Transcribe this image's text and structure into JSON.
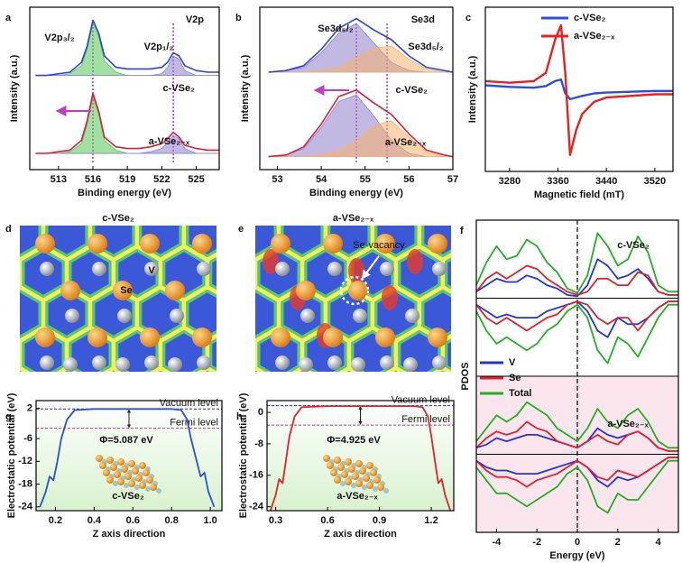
{
  "chart_data": [
    {
      "type": "line",
      "panel": "a",
      "title": "V2p",
      "xlabel": "Binding energy (eV)",
      "ylabel": "Intensity (a.u.)",
      "xlim": [
        510.5,
        527
      ],
      "xticks": [
        513,
        516,
        519,
        522,
        525
      ],
      "ylim": [
        0,
        100
      ],
      "annotations": [
        "V2p₃/₂",
        "V2p₁/₂"
      ],
      "peak_lines": [
        516,
        523
      ],
      "x": [
        511,
        512,
        513,
        514,
        515,
        515.5,
        516,
        516.5,
        517,
        518,
        519,
        520,
        521,
        522,
        522.5,
        523,
        523.5,
        524,
        525,
        526,
        527
      ],
      "series": [
        {
          "color": "#55c655",
          "fill": true,
          "values": [
            58,
            58,
            58,
            59,
            64,
            74,
            90,
            82,
            67,
            60,
            58,
            58,
            58,
            58,
            58,
            58,
            58,
            58,
            58,
            58,
            58
          ]
        },
        {
          "color": "#8f80cc",
          "fill": true,
          "values": [
            58,
            58,
            58,
            58,
            58,
            58,
            58,
            58,
            58,
            58,
            58,
            58,
            58,
            59,
            63,
            70,
            68,
            61,
            58,
            58,
            58
          ]
        },
        {
          "color": "#55c655",
          "fill": true,
          "values": [
            10,
            10,
            10,
            11,
            16,
            28,
            45,
            34,
            18,
            12,
            10,
            10,
            10,
            10,
            10,
            10,
            10,
            10,
            10,
            10,
            10
          ]
        },
        {
          "color": "#8f80cc",
          "fill": true,
          "values": [
            10,
            10,
            10,
            10,
            10,
            10,
            10,
            10,
            10,
            10,
            10,
            10,
            11,
            13,
            17,
            21,
            19,
            13,
            10,
            10,
            10
          ]
        },
        {
          "name": "c-VSe₂",
          "color": "#2a44d6",
          "values": [
            58,
            58,
            59,
            60,
            66,
            76,
            92,
            84,
            70,
            63,
            62,
            62,
            62,
            63,
            66,
            72,
            70,
            64,
            61,
            60,
            60
          ]
        },
        {
          "name": "a-VSe₂₋ₓ",
          "color": "#d81f3a",
          "values": [
            10,
            10,
            11,
            12,
            18,
            30,
            47,
            36,
            20,
            14,
            13,
            13,
            14,
            16,
            19,
            23,
            20,
            15,
            13,
            12,
            12
          ]
        }
      ]
    },
    {
      "type": "line",
      "panel": "b",
      "title": "Se3d",
      "xlabel": "Binding energy (eV)",
      "ylabel": "Intensity (a.u.)",
      "xlim": [
        52.6,
        57
      ],
      "xticks": [
        53,
        54,
        55,
        56,
        57
      ],
      "ylim": [
        0,
        100
      ],
      "annotations": [
        "Se3d₅/₂",
        "Se3d₅/₂"
      ],
      "peak_lines": [
        54.8,
        55.5
      ],
      "x": [
        52.8,
        53.2,
        53.6,
        54,
        54.4,
        54.8,
        55.2,
        55.6,
        56,
        56.4,
        56.8,
        57
      ],
      "series": [
        {
          "color": "#8f80cc",
          "fill": true,
          "values": [
            60,
            61,
            63,
            72,
            84,
            90,
            78,
            66,
            61,
            60,
            60,
            60
          ]
        },
        {
          "color": "#f7b36b",
          "fill": true,
          "values": [
            60,
            60,
            60,
            61,
            63,
            69,
            75,
            76,
            68,
            62,
            60,
            60
          ]
        },
        {
          "color": "#8f80cc",
          "fill": true,
          "values": [
            8,
            9,
            13,
            26,
            42,
            46,
            33,
            18,
            10,
            8,
            8,
            8
          ]
        },
        {
          "color": "#f7b36b",
          "fill": true,
          "values": [
            8,
            8,
            8,
            9,
            12,
            18,
            27,
            30,
            20,
            11,
            8,
            8
          ]
        },
        {
          "name": "c-VSe₂",
          "color": "#2a44d6",
          "values": [
            60,
            61,
            64,
            74,
            87,
            93,
            86,
            80,
            70,
            63,
            61,
            60
          ]
        },
        {
          "name": "a-VSe₂₋ₓ",
          "color": "#d81f3a",
          "values": [
            8,
            9,
            14,
            28,
            45,
            49,
            41,
            34,
            22,
            12,
            9,
            8
          ]
        }
      ]
    },
    {
      "type": "line",
      "panel": "c",
      "xlabel": "Magnetic field (mT)",
      "ylabel": "Intensity (a.u.)",
      "xlim": [
        3240,
        3550
      ],
      "xticks": [
        3280,
        3360,
        3440,
        3520
      ],
      "ylim": [
        -1,
        1
      ],
      "legend": "upper right",
      "x": [
        3240,
        3280,
        3320,
        3340,
        3355,
        3365,
        3372,
        3380,
        3390,
        3400,
        3420,
        3440,
        3480,
        3520,
        3550
      ],
      "series": [
        {
          "name": "c-VSe₂",
          "color": "#2a4fe0",
          "values": [
            0.05,
            0.03,
            0.02,
            0.04,
            0.1,
            0.12,
            -0.05,
            -0.12,
            -0.1,
            -0.08,
            -0.05,
            -0.04,
            -0.03,
            -0.02,
            -0.02
          ]
        },
        {
          "name": "a-VSe₂₋ₓ",
          "color": "#e8201e",
          "values": [
            0.1,
            0.08,
            0.1,
            0.2,
            0.6,
            0.78,
            0.2,
            -0.8,
            -0.5,
            -0.3,
            -0.15,
            -0.1,
            -0.08,
            -0.06,
            -0.06
          ]
        }
      ]
    },
    {
      "type": "map",
      "panel": "d",
      "label": "c-VSe₂",
      "atom_labels": [
        "V",
        "Se"
      ]
    },
    {
      "type": "map",
      "panel": "e",
      "label": "a-VSe₂₋ₓ",
      "annotations": [
        "Se-vacancy"
      ]
    },
    {
      "type": "pdos",
      "panel": "f",
      "xlabel": "Energy (eV)",
      "ylabel": "PDOS",
      "xlim": [
        -5,
        5
      ],
      "xticks": [
        -4,
        -2,
        0,
        2,
        4
      ],
      "ylim": [
        -12,
        12
      ],
      "vline": 0,
      "x": [
        -5,
        -4.5,
        -4,
        -3.5,
        -3,
        -2.5,
        -2,
        -1.5,
        -1,
        -0.5,
        0,
        0.5,
        1,
        1.5,
        2,
        2.5,
        3,
        3.5,
        4,
        4.5,
        5
      ],
      "subplots": [
        {
          "label": "c-VSe₂",
          "series": [
            {
              "name": "V",
              "color": "#2233dd",
              "values": [
                1,
                2,
                3,
                2.5,
                2.5,
                3.5,
                3,
                2,
                1.5,
                0.5,
                0.3,
                2,
                6,
                5,
                3,
                3.5,
                4.5,
                3,
                1,
                0.5,
                0.5
              ]
            },
            {
              "name": "Se",
              "color": "#e0202a",
              "values": [
                1,
                3,
                4,
                3,
                4,
                5,
                4.5,
                3,
                2,
                1,
                0.5,
                1,
                3,
                3,
                2,
                2,
                4,
                3.5,
                1,
                0.5,
                0.5
              ]
            },
            {
              "name": "Total",
              "color": "#22b022",
              "values": [
                2,
                5.5,
                8,
                6,
                6.5,
                9,
                8,
                5.5,
                4,
                1.5,
                0.8,
                3.5,
                10,
                8,
                5,
                6,
                9.5,
                7,
                2,
                1,
                1
              ]
            },
            {
              "color": "#2233dd",
              "values": [
                -1,
                -2,
                -3,
                -2.5,
                -3,
                -3,
                -3,
                -2,
                -1.5,
                -1,
                -0.5,
                -2,
                -5,
                -6,
                -3,
                -4,
                -4,
                -3,
                -1.5,
                -0.5,
                -0.5
              ]
            },
            {
              "color": "#e0202a",
              "values": [
                -1,
                -3,
                -4,
                -3,
                -4,
                -5,
                -4,
                -3,
                -2.5,
                -1,
                -0.5,
                -1,
                -3,
                -4,
                -3,
                -3,
                -5,
                -3,
                -1.5,
                -0.5,
                -0.5
              ]
            },
            {
              "color": "#22b022",
              "values": [
                -2,
                -5,
                -7,
                -6,
                -7,
                -8,
                -7,
                -5,
                -4,
                -2,
                -1,
                -3,
                -8,
                -10,
                -6,
                -7,
                -9,
                -6,
                -3,
                -1,
                -1
              ]
            }
          ]
        },
        {
          "label": "a-VSe₂₋ₓ",
          "series": [
            {
              "color": "#2233dd",
              "values": [
                1,
                1.5,
                2.5,
                2,
                2.5,
                3,
                3,
                2.5,
                2,
                1.5,
                1,
                2,
                4,
                3,
                2.5,
                3,
                3.5,
                2.5,
                1,
                0.5,
                0.5
              ]
            },
            {
              "color": "#e0202a",
              "values": [
                1,
                2.5,
                3.5,
                3,
                3.5,
                5,
                4,
                3.5,
                2,
                1.5,
                1,
                2,
                3,
                2,
                1.5,
                3,
                3.5,
                2.5,
                1,
                0.5,
                0.5
              ]
            },
            {
              "color": "#22b022",
              "values": [
                2,
                4,
                6,
                5,
                6,
                8,
                7,
                6,
                4,
                3,
                2,
                4,
                7,
                5,
                4,
                6,
                7,
                5,
                2,
                1,
                1
              ]
            },
            {
              "color": "#2233dd",
              "values": [
                -1,
                -2,
                -2.5,
                -2.5,
                -3,
                -3,
                -3,
                -2.5,
                -2,
                -1.5,
                -1,
                -2,
                -4,
                -5,
                -3.5,
                -4,
                -3.5,
                -2.5,
                -1.5,
                -0.5,
                -0.5
              ]
            },
            {
              "color": "#e0202a",
              "values": [
                -1,
                -2.5,
                -3.5,
                -3.5,
                -4,
                -5,
                -4,
                -3.5,
                -3,
                -2,
                -1,
                -2,
                -3.5,
                -4,
                -2.5,
                -3,
                -3.5,
                -2.5,
                -1.5,
                -0.5,
                -0.5
              ]
            },
            {
              "color": "#22b022",
              "values": [
                -2,
                -4,
                -6,
                -6,
                -7,
                -8,
                -7,
                -6,
                -5,
                -3,
                -2,
                -4,
                -8,
                -9,
                -6,
                -7,
                -7,
                -5,
                -3,
                -1,
                -1
              ]
            }
          ]
        }
      ]
    },
    {
      "type": "potential",
      "panel": "g",
      "xlabel": "Z axis direction",
      "ylabel": "Electrostatic potential (eV)",
      "xlim": [
        0.1,
        1.06
      ],
      "xticks": [
        0.2,
        0.4,
        0.6,
        0.8,
        {
          "value": 1.0,
          "label": "1.0"
        }
      ],
      "ylim": [
        -25,
        4
      ],
      "yticks": [
        2,
        -6,
        -12,
        -18,
        -24
      ],
      "levels": [
        {
          "name": "Vacuum level",
          "value": 1.8,
          "color": "#1f2d9e"
        },
        {
          "name": "Fermi level",
          "value": -3.287,
          "color": "#c03aa0"
        }
      ],
      "annotations": [
        "Φ=5.087 eV"
      ],
      "x": [
        0.12,
        0.15,
        0.17,
        0.19,
        0.21,
        0.23,
        0.26,
        0.3,
        0.4,
        0.6,
        0.8,
        0.85,
        0.88,
        0.9,
        0.93,
        0.95,
        0.97,
        0.99,
        1.02
      ],
      "series": [
        {
          "name": "c-VSe₂",
          "color": "#2d4fd8",
          "values": [
            -24,
            -20,
            -16,
            -17,
            -12,
            -6,
            -1,
            1.5,
            1.8,
            1.8,
            1.8,
            1.5,
            -1,
            -6,
            -12,
            -16,
            -15,
            -20,
            -24
          ]
        }
      ]
    },
    {
      "type": "potential",
      "panel": "h",
      "xlabel": "Z axis direction",
      "ylabel": "Electrostatic potential (eV)",
      "xlim": [
        0.25,
        1.33
      ],
      "xticks": [
        0.3,
        0.6,
        0.9,
        1.2
      ],
      "ylim": [
        -25,
        3
      ],
      "yticks": [
        0,
        -8,
        -16,
        -24
      ],
      "levels": [
        {
          "name": "Vacuum level",
          "value": 1.7,
          "color": "#1f2d9e"
        },
        {
          "name": "Fermi level",
          "value": -3.225,
          "color": "#c03aa0"
        }
      ],
      "annotations": [
        "Φ=4.925 eV"
      ],
      "x": [
        0.27,
        0.3,
        0.32,
        0.34,
        0.36,
        0.38,
        0.41,
        0.45,
        0.6,
        0.9,
        1.1,
        1.15,
        1.18,
        1.2,
        1.22,
        1.24,
        1.26,
        1.28,
        1.31
      ],
      "series": [
        {
          "name": "a-VSe₂₋ₓ",
          "color": "#e8202a",
          "values": [
            -25,
            -21,
            -17,
            -18,
            -12,
            -6,
            -1,
            1.3,
            1.6,
            1.6,
            1.6,
            1.3,
            -1,
            -6,
            -12,
            -18,
            -17,
            -21,
            -25
          ]
        }
      ]
    }
  ]
}
